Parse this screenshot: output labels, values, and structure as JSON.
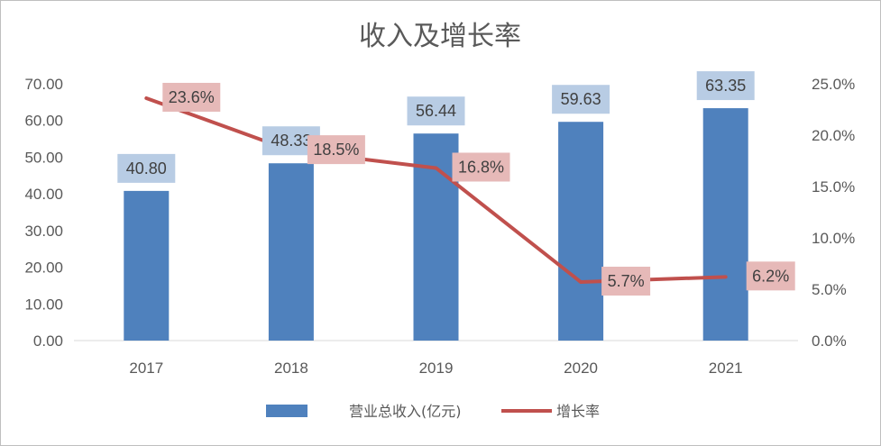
{
  "chart_data": {
    "type": "bar",
    "title": "收入及增长率",
    "categories": [
      "2017",
      "2018",
      "2019",
      "2020",
      "2021"
    ],
    "series": [
      {
        "name": "营业总收入(亿元)",
        "type": "bar",
        "axis": "left",
        "color": "#4f81bd",
        "values": [
          40.8,
          48.33,
          56.44,
          59.63,
          63.35
        ],
        "labels": [
          "40.80",
          "48.33",
          "56.44",
          "59.63",
          "63.35"
        ]
      },
      {
        "name": "增长率",
        "type": "line",
        "axis": "right",
        "color": "#c0504d",
        "values": [
          23.6,
          18.5,
          16.8,
          5.7,
          6.2
        ],
        "labels": [
          "23.6%",
          "18.5%",
          "16.8%",
          "5.7%",
          "6.2%"
        ]
      }
    ],
    "y_left": {
      "ylim": [
        0,
        70
      ],
      "ticks": [
        "0.00",
        "10.00",
        "20.00",
        "30.00",
        "40.00",
        "50.00",
        "60.00",
        "70.00"
      ]
    },
    "y_right": {
      "ylim": [
        0,
        25
      ],
      "ticks": [
        "0.0%",
        "5.0%",
        "10.0%",
        "15.0%",
        "20.0%",
        "25.0%"
      ]
    },
    "grid": false,
    "legend_position": "bottom",
    "label_colors": {
      "bar_label_bg": "#b8cce4",
      "line_label_bg": "#e6b9b8"
    }
  }
}
